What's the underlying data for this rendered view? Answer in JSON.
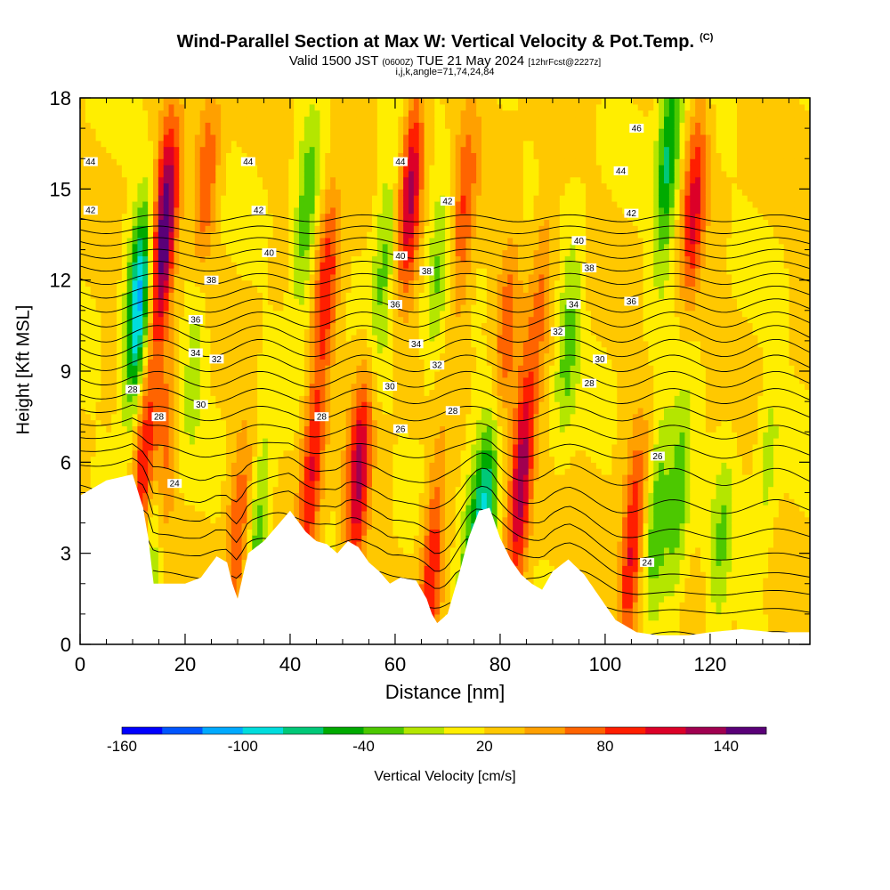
{
  "title": "Wind-Parallel Section at Max W: Vertical Velocity & Pot.Temp.",
  "title_mark": "(C)",
  "subtitle_parts": [
    "Valid 1500 JST ",
    "(0600Z)",
    " TUE 21 May 2024 ",
    "[12hrFcst@2227z]"
  ],
  "subtitle2": "i,j,k,angle=71,74,24,84",
  "chart_data": {
    "type": "heatmap",
    "title": "Wind-Parallel Section at Max W: Vertical Velocity & Pot.Temp.",
    "xlabel": "Distance [nm]",
    "ylabel": "Height [Kft MSL]",
    "xlim": [
      0,
      139
    ],
    "ylim": [
      0,
      18
    ],
    "x_ticks": [
      0,
      20,
      40,
      60,
      80,
      100,
      120
    ],
    "x_tick_labels": [
      "0",
      "20",
      "40",
      "60",
      "80",
      "100",
      "120"
    ],
    "y_ticks": [
      0,
      3,
      6,
      9,
      12,
      15,
      18
    ],
    "y_tick_labels": [
      "0",
      "3",
      "6",
      "9",
      "12",
      "15",
      "18"
    ],
    "colorbar": {
      "label": "Vertical Velocity [cm/s]",
      "min": -160,
      "max": 160,
      "step": 20,
      "tick_values": [
        -160,
        -100,
        -40,
        20,
        80,
        140
      ],
      "tick_labels": [
        "-160",
        "-100",
        "-40",
        "20",
        "80",
        "140"
      ],
      "colors": [
        "#0000ff",
        "#0055ff",
        "#00aaff",
        "#00dddd",
        "#00c878",
        "#00aa00",
        "#4cc800",
        "#b4e600",
        "#ffee00",
        "#ffc800",
        "#ffa000",
        "#ff6400",
        "#ff1e00",
        "#dc0028",
        "#a00050",
        "#5a0078"
      ]
    },
    "terrain_kft": [
      [
        0,
        4.9
      ],
      [
        5,
        5.4
      ],
      [
        10,
        5.6
      ],
      [
        12,
        4.5
      ],
      [
        13,
        3.5
      ],
      [
        14,
        2.0
      ],
      [
        20,
        2.0
      ],
      [
        23,
        2.2
      ],
      [
        26,
        2.9
      ],
      [
        28,
        2.7
      ],
      [
        29,
        2.0
      ],
      [
        30,
        1.5
      ],
      [
        32,
        3.0
      ],
      [
        35,
        3.4
      ],
      [
        38,
        4.0
      ],
      [
        40,
        4.4
      ],
      [
        43,
        3.7
      ],
      [
        45,
        3.4
      ],
      [
        47,
        3.3
      ],
      [
        49,
        3.0
      ],
      [
        51,
        3.4
      ],
      [
        53,
        3.2
      ],
      [
        55,
        2.7
      ],
      [
        57,
        2.4
      ],
      [
        59,
        2.0
      ],
      [
        61,
        2.2
      ],
      [
        64,
        2.1
      ],
      [
        66,
        1.5
      ],
      [
        67,
        1.0
      ],
      [
        68,
        0.7
      ],
      [
        70,
        1.0
      ],
      [
        72,
        2.2
      ],
      [
        74,
        3.5
      ],
      [
        76,
        4.4
      ],
      [
        78,
        4.5
      ],
      [
        80,
        3.5
      ],
      [
        82,
        2.8
      ],
      [
        84,
        2.3
      ],
      [
        86,
        2.0
      ],
      [
        88,
        1.8
      ],
      [
        90,
        2.4
      ],
      [
        93,
        2.8
      ],
      [
        96,
        2.3
      ],
      [
        98,
        1.8
      ],
      [
        100,
        1.3
      ],
      [
        102,
        0.8
      ],
      [
        104,
        0.6
      ],
      [
        106,
        0.4
      ],
      [
        110,
        0.3
      ],
      [
        116,
        0.3
      ],
      [
        120,
        0.4
      ],
      [
        126,
        0.5
      ],
      [
        132,
        0.4
      ],
      [
        139,
        0.4
      ]
    ],
    "w_cells": [
      {
        "x": 16,
        "z": 13.5,
        "w": 150
      },
      {
        "x": 11,
        "z": 11.0,
        "w": -130
      },
      {
        "x": 12,
        "z": 5.5,
        "w": 80
      },
      {
        "x": 16,
        "z": 6.0,
        "w": 60
      },
      {
        "x": 14,
        "z": 3.5,
        "w": -60
      },
      {
        "x": 22,
        "z": 10.0,
        "w": -40
      },
      {
        "x": 24,
        "z": 15.0,
        "w": 60
      },
      {
        "x": 30,
        "z": 3.5,
        "w": 60
      },
      {
        "x": 34,
        "z": 3.5,
        "w": -60
      },
      {
        "x": 43,
        "z": 14.0,
        "w": -60
      },
      {
        "x": 47,
        "z": 12.0,
        "w": 70
      },
      {
        "x": 44,
        "z": 5.5,
        "w": 80
      },
      {
        "x": 53,
        "z": 5.5,
        "w": 100
      },
      {
        "x": 58,
        "z": 13.0,
        "w": -50
      },
      {
        "x": 63,
        "z": 15.0,
        "w": 100
      },
      {
        "x": 68,
        "z": 12.0,
        "w": -40
      },
      {
        "x": 67,
        "z": 2.5,
        "w": 80
      },
      {
        "x": 73,
        "z": 14.0,
        "w": 60
      },
      {
        "x": 77,
        "z": 3.8,
        "w": -110
      },
      {
        "x": 74,
        "z": 2.5,
        "w": -60
      },
      {
        "x": 84,
        "z": 5.5,
        "w": 120
      },
      {
        "x": 81,
        "z": 10.0,
        "w": 50
      },
      {
        "x": 88,
        "z": 12.0,
        "w": 40
      },
      {
        "x": 93,
        "z": 10.0,
        "w": -50
      },
      {
        "x": 105,
        "z": 3.0,
        "w": 90
      },
      {
        "x": 110,
        "z": 4.5,
        "w": -60
      },
      {
        "x": 114,
        "z": 5.0,
        "w": -60
      },
      {
        "x": 112,
        "z": 16.0,
        "w": -90
      },
      {
        "x": 117,
        "z": 14.5,
        "w": 80
      },
      {
        "x": 122,
        "z": 3.0,
        "w": -40
      },
      {
        "x": 131,
        "z": 6.0,
        "w": -30
      }
    ],
    "theta_contours": {
      "interval": 1,
      "levels_min": 22,
      "levels_max": 46,
      "labels": [
        {
          "x": 2,
          "z": 15.9,
          "text": "44"
        },
        {
          "x": 2,
          "z": 14.3,
          "text": "42"
        },
        {
          "x": 32,
          "z": 15.9,
          "text": "44"
        },
        {
          "x": 34,
          "z": 14.3,
          "text": "42"
        },
        {
          "x": 36,
          "z": 12.9,
          "text": "40"
        },
        {
          "x": 25,
          "z": 12.0,
          "text": "38"
        },
        {
          "x": 22,
          "z": 10.7,
          "text": "36"
        },
        {
          "x": 22,
          "z": 9.6,
          "text": "34"
        },
        {
          "x": 26,
          "z": 9.4,
          "text": "32"
        },
        {
          "x": 23,
          "z": 7.9,
          "text": "30"
        },
        {
          "x": 10,
          "z": 8.4,
          "text": "28"
        },
        {
          "x": 15,
          "z": 7.5,
          "text": "28"
        },
        {
          "x": 18,
          "z": 5.3,
          "text": "24"
        },
        {
          "x": 46,
          "z": 7.5,
          "text": "28"
        },
        {
          "x": 61,
          "z": 15.9,
          "text": "44"
        },
        {
          "x": 70,
          "z": 14.6,
          "text": "42"
        },
        {
          "x": 61,
          "z": 12.8,
          "text": "40"
        },
        {
          "x": 66,
          "z": 12.3,
          "text": "38"
        },
        {
          "x": 60,
          "z": 11.2,
          "text": "36"
        },
        {
          "x": 64,
          "z": 9.9,
          "text": "34"
        },
        {
          "x": 68,
          "z": 9.2,
          "text": "32"
        },
        {
          "x": 59,
          "z": 8.5,
          "text": "30"
        },
        {
          "x": 61,
          "z": 7.1,
          "text": "26"
        },
        {
          "x": 71,
          "z": 7.7,
          "text": "28"
        },
        {
          "x": 106,
          "z": 17.0,
          "text": "46"
        },
        {
          "x": 103,
          "z": 15.6,
          "text": "44"
        },
        {
          "x": 105,
          "z": 14.2,
          "text": "42"
        },
        {
          "x": 95,
          "z": 13.3,
          "text": "40"
        },
        {
          "x": 97,
          "z": 12.4,
          "text": "38"
        },
        {
          "x": 105,
          "z": 11.3,
          "text": "36"
        },
        {
          "x": 94,
          "z": 11.2,
          "text": "34"
        },
        {
          "x": 91,
          "z": 10.3,
          "text": "32"
        },
        {
          "x": 99,
          "z": 9.4,
          "text": "30"
        },
        {
          "x": 97,
          "z": 8.6,
          "text": "28"
        },
        {
          "x": 110,
          "z": 6.2,
          "text": "26"
        },
        {
          "x": 108,
          "z": 2.7,
          "text": "24"
        }
      ]
    }
  }
}
